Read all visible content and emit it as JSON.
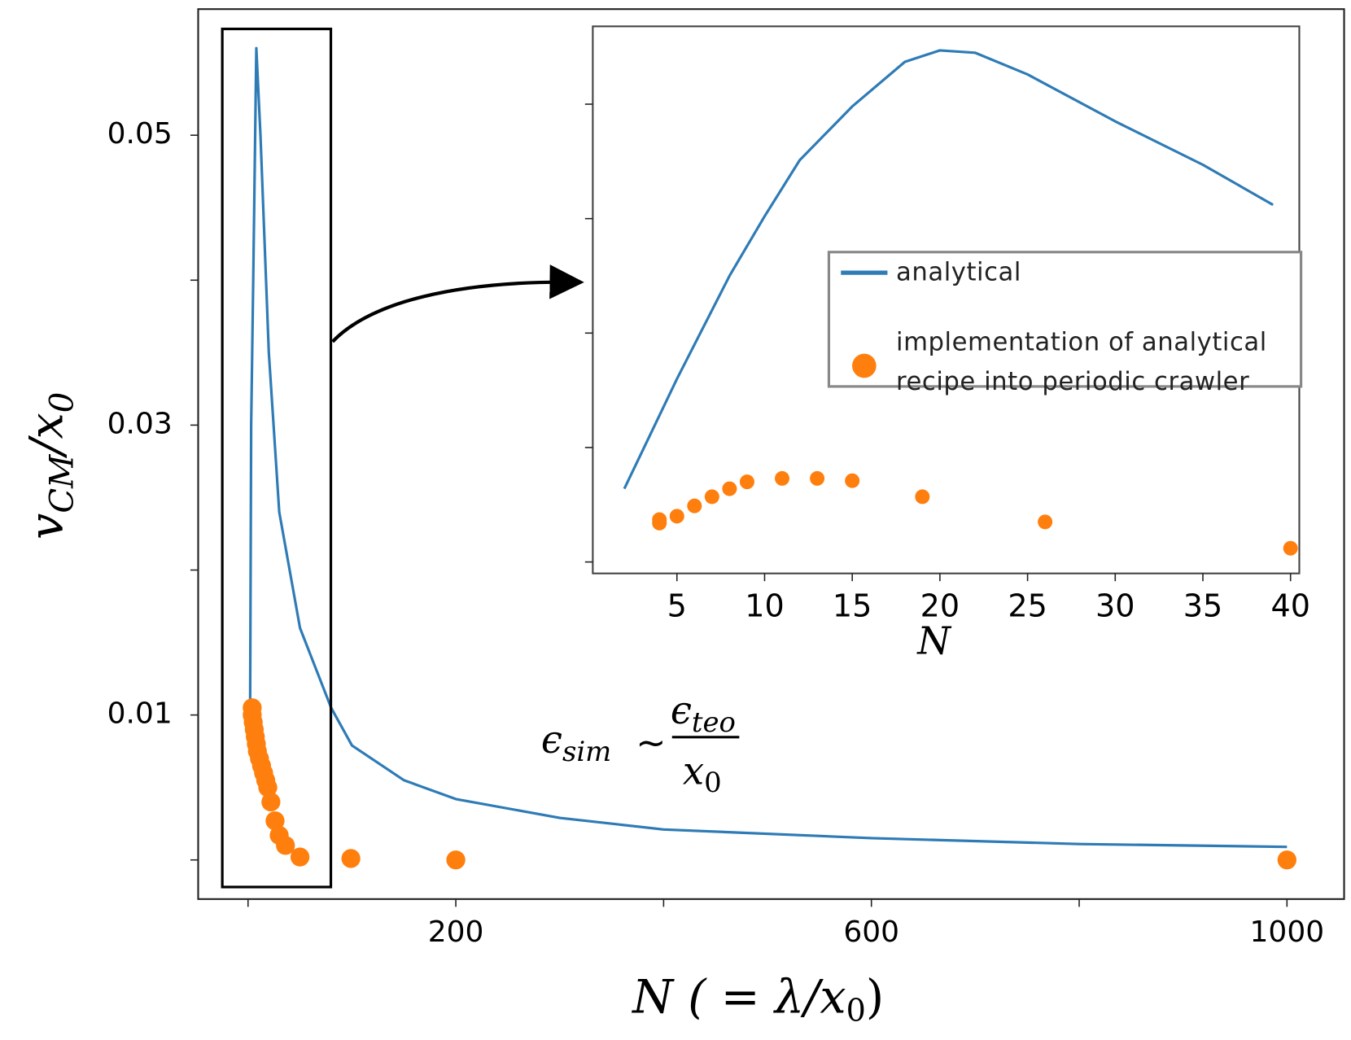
{
  "chart_data": [
    {
      "type": "line",
      "ylabel": [
        "v",
        "CM",
        "/x",
        "0"
      ],
      "xlabel": [
        "N",
        " ( = λ/x",
        "0",
        ")"
      ],
      "annotation": {
        "left": "ϵ",
        "left_sub": "sim",
        "op": "~",
        "num": "ϵ",
        "num_sub": "teo",
        "den": "x",
        "den_sub": "0"
      },
      "xlim": [
        -48,
        1055
      ],
      "ylim": [
        -0.0027,
        0.0587
      ],
      "xticks": [
        200,
        600,
        1000
      ],
      "xticks_minor": [
        0,
        400,
        800
      ],
      "yticks": [
        0.01,
        0.03,
        0.05
      ],
      "yticks_minor": [
        0,
        0.02,
        0.04
      ],
      "series": [
        {
          "name": "analytical",
          "style": "line",
          "color": "#2e7bb6",
          "x": [
            2,
            3,
            5,
            8,
            12,
            20,
            30,
            50,
            80,
            100,
            150,
            200,
            300,
            400,
            600,
            800,
            1000
          ],
          "values": [
            0.0105,
            0.03,
            0.04,
            0.056,
            0.05,
            0.035,
            0.024,
            0.016,
            0.0105,
            0.0079,
            0.0055,
            0.0042,
            0.0029,
            0.0021,
            0.0015,
            0.0011,
            0.0009
          ]
        },
        {
          "name": "implementation of analytical recipe into periodic crawler",
          "style": "markers",
          "color": "#ff7f0e",
          "x": [
            4,
            4,
            5,
            6,
            7,
            8,
            9,
            11,
            13,
            15,
            17,
            19,
            22,
            26,
            30,
            36,
            50,
            99,
            200,
            1000
          ],
          "values": [
            0.0105,
            0.01,
            0.0095,
            0.009,
            0.0085,
            0.008,
            0.0075,
            0.007,
            0.0065,
            0.006,
            0.0055,
            0.005,
            0.004,
            0.0027,
            0.0017,
            0.001,
            0.0002,
            0.0001,
            0.0,
            0.0
          ]
        }
      ]
    },
    {
      "type": "line",
      "xlabel": [
        "N"
      ],
      "legend": "center right",
      "xlim": [
        0.2,
        40.5
      ],
      "ylim": [
        0.009,
        0.0568
      ],
      "xticks": [
        5,
        10,
        15,
        20,
        25,
        30,
        35,
        40
      ],
      "yticks_minor": [
        0.01,
        0.02,
        0.03,
        0.04,
        0.05
      ],
      "series": [
        {
          "name": "analytical",
          "style": "line",
          "color": "#2e7bb6",
          "x": [
            2,
            5,
            8,
            10,
            12,
            15,
            18,
            20,
            22,
            25,
            30,
            35,
            39
          ],
          "values": [
            0.0164,
            0.026,
            0.035,
            0.0402,
            0.0451,
            0.0498,
            0.0537,
            0.0547,
            0.0545,
            0.0526,
            0.0485,
            0.0447,
            0.0412
          ]
        },
        {
          "name": "implementation of analytical recipe into periodic crawler",
          "style": "markers",
          "color": "#ff7f0e",
          "x": [
            4,
            4,
            5,
            6,
            7,
            8,
            9,
            11,
            13,
            15,
            19,
            26,
            40
          ],
          "values": [
            0.0134,
            0.0137,
            0.014,
            0.0149,
            0.0157,
            0.0164,
            0.017,
            0.0173,
            0.0173,
            0.0171,
            0.0157,
            0.0135,
            0.0112
          ]
        }
      ]
    }
  ]
}
